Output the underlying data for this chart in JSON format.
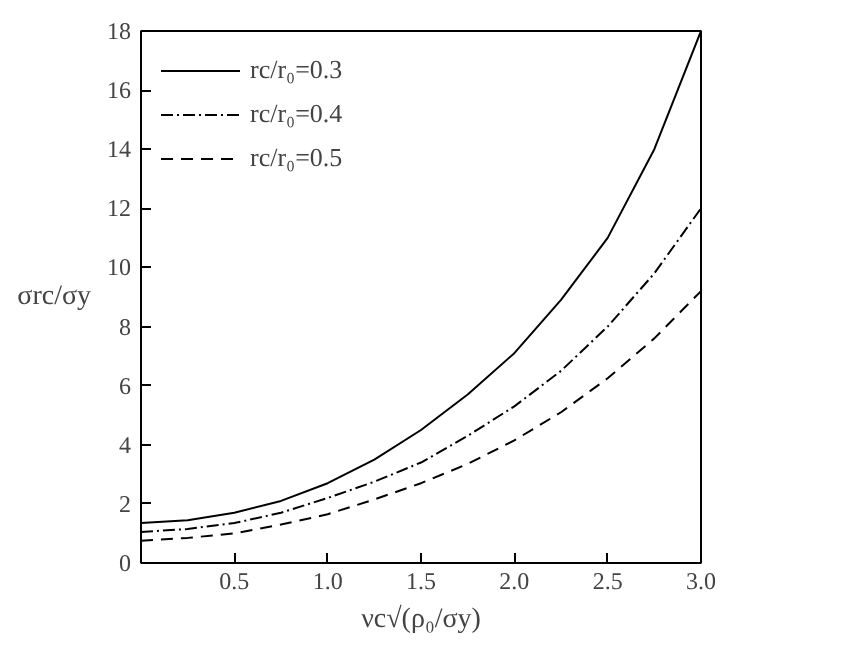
{
  "chart_data": {
    "type": "line",
    "xlabel": "νc√(ρ₀/σy)",
    "ylabel": "σrc/σy",
    "x": [
      0,
      0.25,
      0.5,
      0.75,
      1.0,
      1.25,
      1.5,
      1.75,
      2.0,
      2.25,
      2.5,
      2.75,
      3.0
    ],
    "series": [
      {
        "name": "rc/r₀=0.3",
        "color": "#000000",
        "line_style": "solid",
        "values": [
          1.35,
          1.45,
          1.7,
          2.1,
          2.7,
          3.5,
          4.5,
          5.7,
          7.1,
          8.9,
          11.0,
          14.0,
          18.0
        ]
      },
      {
        "name": "rc/r₀=0.4",
        "color": "#000000",
        "line_style": "dashdot",
        "values": [
          1.05,
          1.15,
          1.35,
          1.7,
          2.2,
          2.75,
          3.4,
          4.3,
          5.3,
          6.5,
          8.0,
          9.8,
          12.0
        ]
      },
      {
        "name": "rc/r₀=0.5",
        "color": "#000000",
        "line_style": "dashed",
        "values": [
          0.75,
          0.85,
          1.0,
          1.3,
          1.65,
          2.15,
          2.7,
          3.35,
          4.15,
          5.1,
          6.25,
          7.6,
          9.2
        ]
      }
    ],
    "xlim": [
      0,
      3.0
    ],
    "ylim": [
      0,
      18
    ],
    "xticks": [
      0.5,
      {
        "value": 1,
        "label": "1.0"
      },
      1.5,
      {
        "value": 2,
        "label": "2.0"
      },
      2.5,
      {
        "value": 3,
        "label": "3.0"
      }
    ],
    "yticks": [
      0,
      2,
      4,
      6,
      8,
      10,
      12,
      14,
      16,
      18
    ],
    "grid": false,
    "legend": "top left",
    "marker": "none"
  }
}
